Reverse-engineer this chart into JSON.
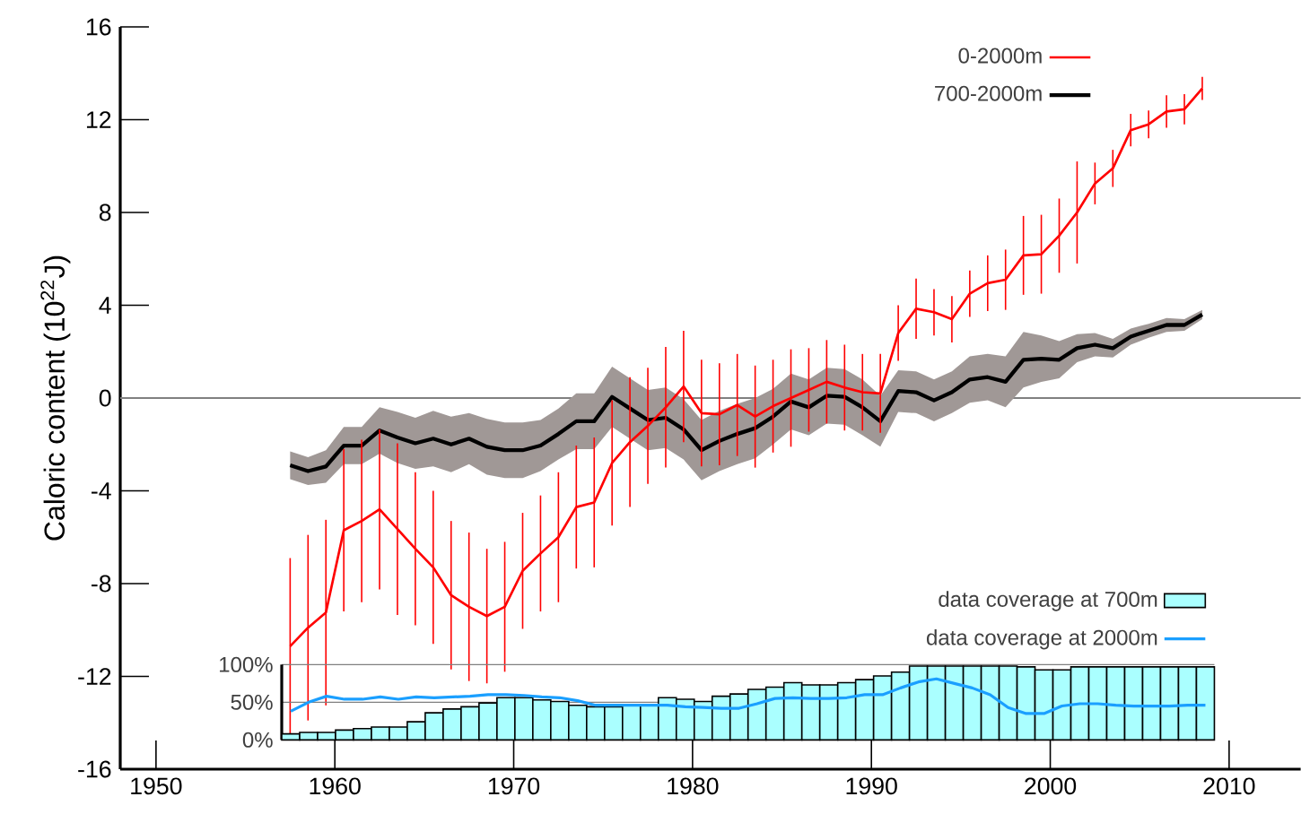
{
  "chart_data": [
    {
      "type": "line",
      "ylabel": "Caloric content (10$^{22}$J)",
      "xlim": [
        1948,
        2014
      ],
      "xticks": [
        1950,
        1960,
        1970,
        1980,
        1990,
        2000,
        2010
      ],
      "ylim": [
        -16,
        16
      ],
      "yticks": [
        -16,
        -12,
        -8,
        -4,
        0,
        4,
        8,
        12,
        16
      ],
      "legend": "top right",
      "ref_lines": [
        {
          "axis": "y",
          "value": 0,
          "color": "#808080"
        }
      ],
      "x": [
        1957.5,
        1958.5,
        1959.5,
        1960.5,
        1961.5,
        1962.5,
        1963.5,
        1964.5,
        1965.5,
        1966.5,
        1967.5,
        1968.5,
        1969.5,
        1970.5,
        1971.5,
        1972.5,
        1973.5,
        1974.5,
        1975.5,
        1976.5,
        1977.5,
        1978.5,
        1979.5,
        1980.5,
        1981.5,
        1982.5,
        1983.5,
        1984.5,
        1985.5,
        1986.5,
        1987.5,
        1988.5,
        1989.5,
        1990.5,
        1991.5,
        1992.5,
        1993.5,
        1994.5,
        1995.5,
        1996.5,
        1997.5,
        1998.5,
        1999.5,
        2000.5,
        2001.5,
        2002.5,
        2003.5,
        2004.5,
        2005.5,
        2006.5,
        2007.5,
        2008.5
      ],
      "series": [
        {
          "name": "0-2000m",
          "color": "#ff0000",
          "values": [
            -10.7,
            -9.9,
            -9.25,
            -5.7,
            -5.3,
            -4.8,
            -5.65,
            -6.5,
            -7.3,
            -8.5,
            -9.0,
            -9.4,
            -9.0,
            -7.45,
            -6.7,
            -6.0,
            -4.7,
            -4.5,
            -2.8,
            -1.9,
            -1.2,
            -0.4,
            0.5,
            -0.65,
            -0.7,
            -0.3,
            -0.8,
            -0.35,
            0,
            0.35,
            0.7,
            0.45,
            0.25,
            0.2,
            2.8,
            3.85,
            3.7,
            3.4,
            4.5,
            4.95,
            5.1,
            6.15,
            6.2,
            7.0,
            8.0,
            9.25,
            9.9,
            11.55,
            11.8,
            12.35,
            12.45,
            13.35
          ],
          "errors": [
            3.8,
            4.0,
            4.0,
            3.5,
            3.5,
            3.45,
            3.7,
            3.3,
            3.3,
            3.2,
            3.2,
            2.9,
            2.8,
            2.5,
            2.5,
            2.8,
            2.65,
            2.8,
            2.7,
            2.8,
            2.5,
            2.6,
            2.4,
            2.3,
            2.2,
            2.2,
            2.2,
            2.0,
            2.1,
            1.8,
            1.8,
            1.85,
            1.65,
            1.7,
            1.2,
            1.3,
            1.0,
            1.0,
            1.0,
            1.2,
            1.3,
            1.7,
            1.7,
            1.6,
            2.2,
            0.9,
            0.8,
            0.7,
            0.6,
            0.7,
            0.65,
            0.5
          ]
        },
        {
          "name": "700-2000m",
          "color": "#000000",
          "values": [
            -2.9,
            -3.15,
            -2.95,
            -2.05,
            -2.05,
            -1.4,
            -1.7,
            -1.95,
            -1.75,
            -2.0,
            -1.75,
            -2.1,
            -2.25,
            -2.25,
            -2.05,
            -1.55,
            -1.0,
            -1.0,
            0.05,
            -0.45,
            -0.95,
            -0.85,
            -1.35,
            -2.25,
            -1.85,
            -1.55,
            -1.3,
            -0.8,
            -0.15,
            -0.4,
            0.1,
            0.05,
            -0.4,
            -1.0,
            0.3,
            0.25,
            -0.1,
            0.25,
            0.8,
            0.9,
            0.7,
            1.65,
            1.7,
            1.65,
            2.15,
            2.3,
            2.15,
            2.65,
            2.9,
            3.15,
            3.15,
            3.6
          ],
          "lower": [
            -3.5,
            -3.75,
            -3.65,
            -2.85,
            -2.85,
            -2.4,
            -2.8,
            -3.05,
            -2.95,
            -3.2,
            -2.85,
            -3.3,
            -3.45,
            -3.45,
            -3.15,
            -2.65,
            -2.2,
            -2.2,
            -1.25,
            -1.75,
            -2.25,
            -2.15,
            -2.65,
            -3.55,
            -3.15,
            -2.85,
            -2.6,
            -2.0,
            -1.35,
            -1.6,
            -1.1,
            -1.15,
            -1.6,
            -2.1,
            -0.6,
            -0.65,
            -1.0,
            -0.65,
            -0.2,
            -0.1,
            -0.4,
            0.45,
            0.7,
            0.85,
            1.55,
            1.8,
            1.75,
            2.3,
            2.6,
            2.85,
            2.9,
            3.4
          ],
          "upper": [
            -2.3,
            -2.55,
            -2.25,
            -1.25,
            -1.25,
            -0.4,
            -0.6,
            -0.85,
            -0.55,
            -0.8,
            -0.65,
            -0.9,
            -1.05,
            -1.05,
            -0.95,
            -0.45,
            0.2,
            0.2,
            1.35,
            0.85,
            0.35,
            0.45,
            -0.05,
            -0.95,
            -0.55,
            -0.25,
            0,
            0.4,
            1.05,
            0.8,
            1.3,
            1.25,
            0.8,
            0.1,
            1.2,
            1.15,
            0.8,
            1.15,
            1.8,
            1.9,
            1.8,
            2.85,
            2.7,
            2.45,
            2.75,
            2.8,
            2.55,
            3.0,
            3.2,
            3.45,
            3.4,
            3.8
          ]
        }
      ]
    },
    {
      "type": "bar",
      "tick_labels": "y",
      "ylim": [
        0,
        100
      ],
      "yticks": [
        {
          "value": 0,
          "label": "0%"
        },
        {
          "value": 50,
          "label": "50%"
        },
        {
          "value": 100,
          "label": "100%"
        }
      ],
      "grid": "y",
      "legend": "top",
      "categories": [
        null,
        null,
        null,
        null,
        null,
        null,
        null,
        null,
        null,
        null,
        null,
        null,
        null,
        null,
        null,
        null,
        null,
        null,
        null,
        null,
        null,
        null,
        null,
        null,
        null,
        null,
        null,
        null,
        null,
        null,
        null,
        null,
        null,
        null,
        null,
        null,
        null,
        null,
        null,
        null,
        null,
        null,
        null,
        null,
        null,
        null,
        null,
        null,
        null,
        null,
        null,
        null
      ],
      "series": [
        {
          "name": "data coverage at 700m",
          "color": "#aaffff",
          "values": [
            8,
            10,
            10,
            13,
            15,
            17,
            17,
            24,
            36,
            41,
            44,
            49,
            56,
            56,
            53,
            51,
            46,
            44,
            44,
            46,
            46,
            56,
            54,
            51,
            58,
            61,
            67,
            70,
            76,
            73,
            73,
            76,
            80,
            85,
            90,
            98,
            98,
            98,
            98,
            98,
            98,
            97,
            93,
            93,
            97,
            97,
            97,
            97,
            97,
            97,
            97,
            97
          ]
        },
        {
          "name": "data coverage at 2000m",
          "type": "line",
          "color": "#1a9fff",
          "values": [
            38,
            50,
            58,
            54,
            54,
            57,
            54,
            57,
            56,
            57,
            58,
            60,
            60,
            59,
            57,
            56,
            52,
            46,
            46,
            46,
            46,
            46,
            44,
            43,
            42,
            42,
            48,
            55,
            56,
            55,
            55,
            56,
            60,
            60,
            69,
            77,
            81,
            75,
            69,
            60,
            43,
            35,
            35,
            45,
            48,
            48,
            46,
            45,
            45,
            45,
            46,
            46
          ]
        }
      ]
    }
  ]
}
